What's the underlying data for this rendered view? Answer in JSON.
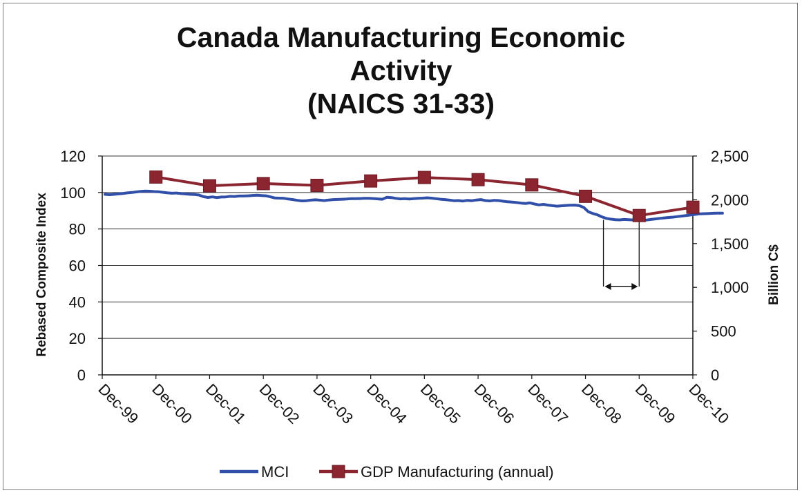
{
  "chart_data": {
    "type": "line",
    "title_lines": [
      "Canada Manufacturing Economic",
      "Activity",
      "(NAICS 31-33)"
    ],
    "ylabel": "Rebased Composite Index",
    "y2label": "Billion C$",
    "ylim": [
      0,
      120
    ],
    "y2lim": [
      0,
      2500
    ],
    "yticks": [
      "0",
      "20",
      "40",
      "60",
      "80",
      "100",
      "120"
    ],
    "y2ticks": [
      "0",
      "500",
      "1,000",
      "1,500",
      "2,000",
      "2,500"
    ],
    "xticks": [
      "Dec-99",
      "Dec-00",
      "Dec-01",
      "Dec-02",
      "Dec-03",
      "Dec-04",
      "Dec-05",
      "Dec-06",
      "Dec-07",
      "Dec-08",
      "Dec-09",
      "Dec-10"
    ],
    "grid": true,
    "legend_position": "bottom",
    "series": [
      {
        "name": "MCI",
        "axis": "left",
        "color": "#2f4fa8",
        "x_start": "Dec-99",
        "frequency": "monthly",
        "values": [
          99,
          98.8,
          99,
          99.2,
          99.5,
          99.8,
          100,
          100.3,
          100.6,
          100.8,
          100.7,
          100.5,
          100.4,
          100.1,
          99.8,
          99.6,
          99.7,
          99.4,
          99.2,
          99,
          98.9,
          98.6,
          97.7,
          97.3,
          97.6,
          97.2,
          97.5,
          97.6,
          97.9,
          97.8,
          98.1,
          98.1,
          98.2,
          98.4,
          98.5,
          98.3,
          98.2,
          97.6,
          97,
          96.9,
          96.8,
          96.4,
          96.1,
          95.7,
          95.4,
          95.5,
          95.8,
          96,
          95.8,
          95.6,
          95.9,
          96.1,
          96.2,
          96.3,
          96.4,
          96.6,
          96.6,
          96.7,
          96.8,
          96.8,
          96.7,
          96.5,
          96.3,
          97.4,
          97.2,
          96.8,
          96.5,
          96.6,
          96.4,
          96.6,
          96.8,
          96.9,
          97.1,
          96.9,
          96.6,
          96.3,
          96.1,
          95.8,
          95.5,
          95.6,
          95.3,
          95.7,
          95.5,
          95.9,
          96.1,
          95.6,
          95.4,
          95.7,
          95.6,
          95.2,
          94.9,
          94.7,
          94.5,
          94.2,
          94,
          94.3,
          93.7,
          93.2,
          93.5,
          93.1,
          92.8,
          92.5,
          92.7,
          92.9,
          93,
          93.1,
          92.8,
          91.8,
          89.5,
          88.5,
          87.8,
          86.7,
          85.8,
          85.4,
          85.1,
          85,
          85.2,
          85.1,
          85,
          84.9,
          84.8,
          84.9,
          85.2,
          85.5,
          85.8,
          86.1,
          86.3,
          86.5,
          86.8,
          87.1,
          87.4,
          87.7,
          88,
          88.3,
          88.4,
          88.5,
          88.6,
          88.7,
          88.7
        ]
      },
      {
        "name": "GDP Manufacturing (annual)",
        "axis": "right",
        "color": "#8b2530",
        "x": [
          "Dec-00",
          "Dec-01",
          "Dec-02",
          "Dec-03",
          "Dec-04",
          "Dec-05",
          "Dec-06",
          "Dec-07",
          "Dec-08",
          "Dec-09",
          "Dec-10"
        ],
        "values": [
          2260,
          2160,
          2185,
          2165,
          2215,
          2255,
          2230,
          2170,
          2040,
          1820,
          1915
        ]
      }
    ]
  }
}
